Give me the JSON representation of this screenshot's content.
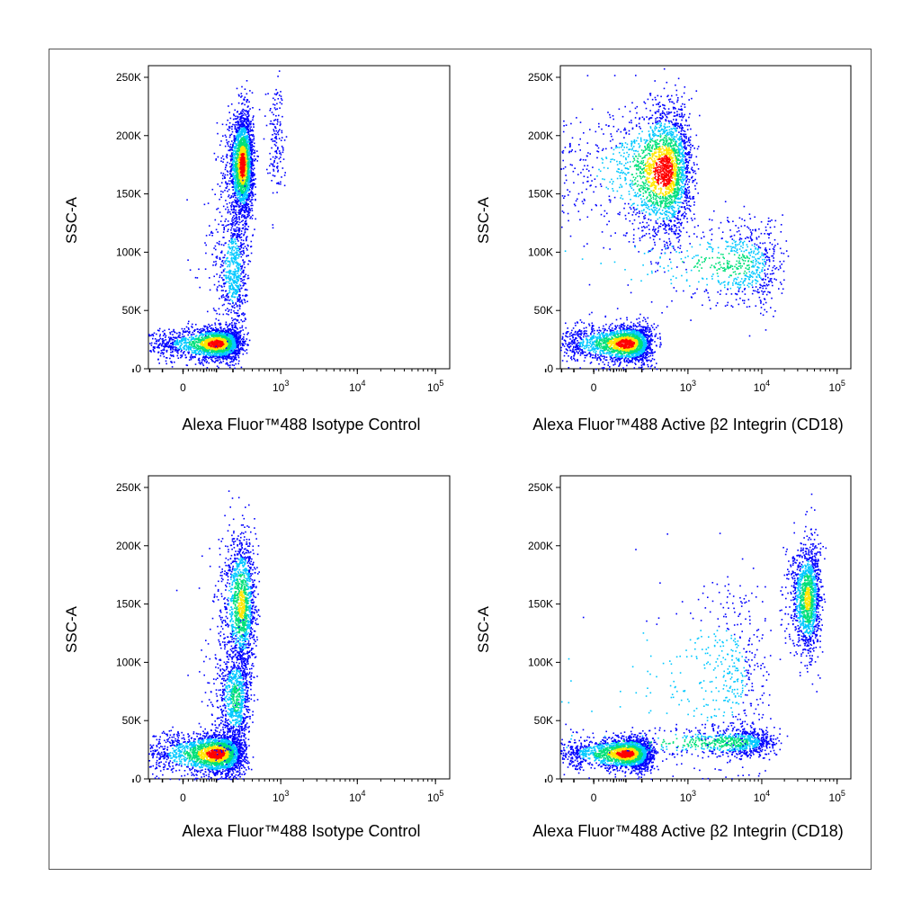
{
  "figure": {
    "panels": [
      {
        "id": "top-left",
        "xlabel": "Alexa Fluor™488  Isotype Control",
        "ylabel": "SSC-A"
      },
      {
        "id": "top-right",
        "xlabel": "Alexa Fluor™488 Active β2 Integrin (CD18)",
        "ylabel": "SSC-A"
      },
      {
        "id": "bottom-left",
        "xlabel": "Alexa Fluor™488  Isotype Control",
        "ylabel": "SSC-A"
      },
      {
        "id": "bottom-right",
        "xlabel": "Alexa Fluor™488 Active β2 Integrin (CD18)",
        "ylabel": "SSC-A"
      }
    ]
  },
  "chart_data": [
    {
      "type": "scatter",
      "panel": "top-left",
      "style": "density (pseudocolor)",
      "xlabel": "Alexa Fluor™488  Isotype Control",
      "ylabel": "SSC-A",
      "x_scale": "biexponential",
      "x_ticks": [
        "0",
        "10^3",
        "10^4",
        "10^5"
      ],
      "y_ticks": [
        "0",
        "50K",
        "100K",
        "150K",
        "200K",
        "250K"
      ],
      "ylim": [
        0,
        260000
      ],
      "populations": [
        {
          "name": "",
          "x_center": 100,
          "y_center": 22000,
          "n": 2200,
          "x_spread": 80,
          "y_spread": 7000
        },
        {
          "name": "",
          "x_center": 280,
          "y_center": 175000,
          "n": 2400,
          "x_spread": 60,
          "y_spread": 22000
        },
        {
          "name": "",
          "x_center": 200,
          "y_center": 85000,
          "n": 700,
          "x_spread": 60,
          "y_spread": 28000
        },
        {
          "name": "",
          "x_center": 850,
          "y_center": 200000,
          "n": 150,
          "x_spread": 120,
          "y_spread": 25000
        }
      ]
    },
    {
      "type": "scatter",
      "panel": "top-right",
      "style": "density (pseudocolor)",
      "xlabel": "Alexa Fluor™488 Active β2 Integrin (CD18)",
      "ylabel": "SSC-A",
      "x_scale": "biexponential",
      "x_ticks": [
        "0",
        "10^3",
        "10^4",
        "10^5"
      ],
      "y_ticks": [
        "0",
        "50K",
        "100K",
        "150K",
        "200K",
        "250K"
      ],
      "ylim": [
        0,
        260000
      ],
      "populations": [
        {
          "name": "",
          "x_center": 100,
          "y_center": 22000,
          "n": 2200,
          "x_spread": 90,
          "y_spread": 8000
        },
        {
          "name": "",
          "x_center": 450,
          "y_center": 170000,
          "n": 2600,
          "x_spread": 300,
          "y_spread": 28000
        },
        {
          "name": "",
          "x_center": 4000,
          "y_center": 90000,
          "n": 900,
          "x_spread": 6000,
          "y_spread": 18000
        }
      ]
    },
    {
      "type": "scatter",
      "panel": "bottom-left",
      "style": "density (pseudocolor)",
      "xlabel": "Alexa Fluor™488  Isotype Control",
      "ylabel": "SSC-A",
      "x_scale": "biexponential",
      "x_ticks": [
        "0",
        "10^3",
        "10^4",
        "10^5"
      ],
      "y_ticks": [
        "0",
        "50K",
        "100K",
        "150K",
        "200K",
        "250K"
      ],
      "ylim": [
        0,
        260000
      ],
      "populations": [
        {
          "name": "",
          "x_center": 100,
          "y_center": 22000,
          "n": 2500,
          "x_spread": 90,
          "y_spread": 9000
        },
        {
          "name": "",
          "x_center": 270,
          "y_center": 150000,
          "n": 1400,
          "x_spread": 80,
          "y_spread": 30000
        },
        {
          "name": "",
          "x_center": 220,
          "y_center": 70000,
          "n": 900,
          "x_spread": 70,
          "y_spread": 22000
        }
      ]
    },
    {
      "type": "scatter",
      "panel": "bottom-right",
      "style": "density (pseudocolor)",
      "xlabel": "Alexa Fluor™488 Active β2 Integrin (CD18)",
      "ylabel": "SSC-A",
      "x_scale": "biexponential",
      "x_ticks": [
        "0",
        "10^3",
        "10^4",
        "10^5"
      ],
      "y_ticks": [
        "0",
        "50K",
        "100K",
        "150K",
        "200K",
        "250K"
      ],
      "ylim": [
        0,
        260000
      ],
      "populations": [
        {
          "name": "",
          "x_center": 100,
          "y_center": 22000,
          "n": 2200,
          "x_spread": 90,
          "y_spread": 7000
        },
        {
          "name": "",
          "x_center": 40000,
          "y_center": 155000,
          "n": 1400,
          "x_spread": 9000,
          "y_spread": 24000
        },
        {
          "name": "",
          "x_center": 3000,
          "y_center": 32000,
          "n": 1100,
          "x_spread": 5000,
          "y_spread": 6000
        },
        {
          "name": "",
          "x_center": 2000,
          "y_center": 90000,
          "n": 700,
          "x_spread": 4000,
          "y_spread": 40000
        }
      ]
    }
  ],
  "colors": {
    "low_density": "#0000ff",
    "mid_low": "#00c8ff",
    "mid": "#00e07a",
    "mid_high": "#ffe600",
    "high_density": "#ff0000"
  }
}
